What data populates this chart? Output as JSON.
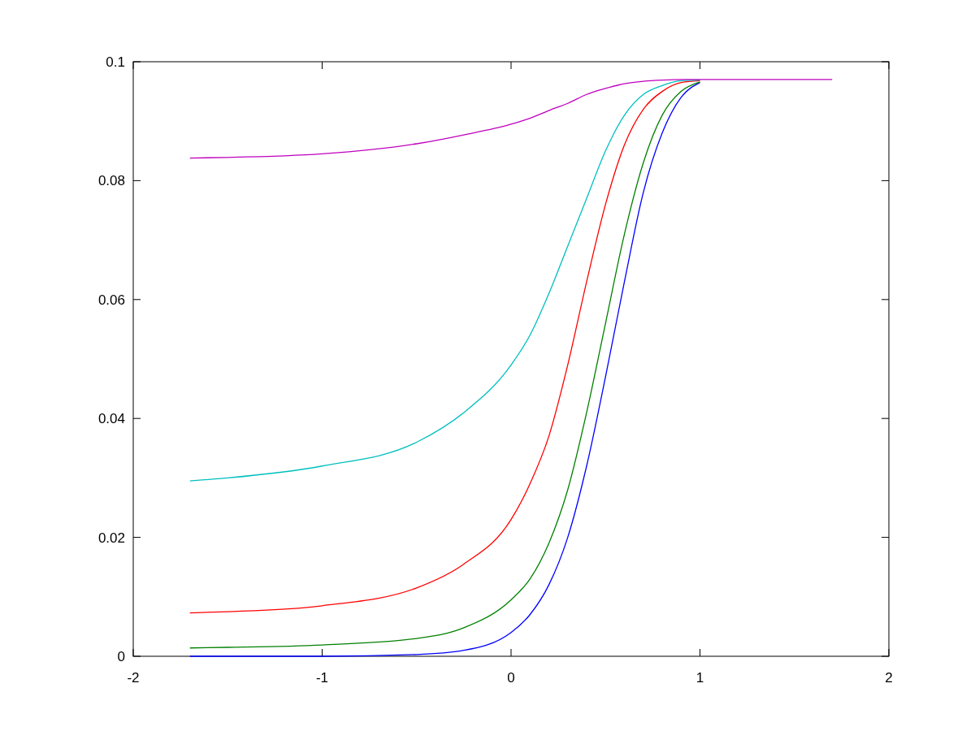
{
  "chart_data": {
    "type": "line",
    "x": [
      -1.7,
      -1.5,
      -1,
      -0.5,
      -0.25,
      0,
      0.1,
      0.2,
      0.3,
      0.4,
      0.5,
      0.6,
      0.7,
      0.8,
      0.9,
      1.0,
      1.1,
      1.3,
      1.5,
      1.7
    ],
    "series": [
      {
        "color": "#0000ff",
        "values": [
          0,
          0,
          0,
          0.0003,
          0.001,
          0.004,
          0.007,
          0.012,
          0.02,
          0.032,
          0.047,
          0.063,
          0.078,
          0.088,
          0.094,
          0.0965,
          null,
          null,
          null,
          null
        ]
      },
      {
        "color": "#008000",
        "values": [
          0.0014,
          0.0015,
          0.0019,
          0.003,
          0.0048,
          0.0095,
          0.013,
          0.019,
          0.028,
          0.041,
          0.056,
          0.071,
          0.083,
          0.091,
          0.095,
          0.0966,
          null,
          null,
          null,
          null
        ]
      },
      {
        "color": "#ff0000",
        "values": [
          0.0073,
          0.0075,
          0.0085,
          0.0115,
          0.0155,
          0.023,
          0.029,
          0.037,
          0.049,
          0.063,
          0.076,
          0.086,
          0.092,
          0.095,
          0.0965,
          0.0968,
          null,
          null,
          null,
          null
        ]
      },
      {
        "color": "#00bfbf",
        "values": [
          0.0295,
          0.03,
          0.032,
          0.036,
          0.041,
          0.049,
          0.054,
          0.061,
          0.069,
          0.077,
          0.085,
          0.091,
          0.0945,
          0.096,
          0.0968,
          0.0969,
          null,
          null,
          null,
          null
        ]
      },
      {
        "color": "#bf00bf",
        "values": [
          0.0838,
          0.0839,
          0.0845,
          0.0862,
          0.0877,
          0.0895,
          0.0905,
          0.0918,
          0.093,
          0.0945,
          0.0955,
          0.0963,
          0.0967,
          0.0969,
          0.097,
          0.097,
          0.097,
          0.097,
          0.097,
          0.097
        ]
      }
    ],
    "xlim": [
      -2,
      2
    ],
    "xticks": [
      -2,
      -1,
      0,
      1,
      2
    ],
    "ylim": [
      0,
      0.1
    ],
    "yticks": [
      0,
      0.02,
      0.04,
      0.06,
      0.08,
      0.1
    ],
    "grid": false
  }
}
